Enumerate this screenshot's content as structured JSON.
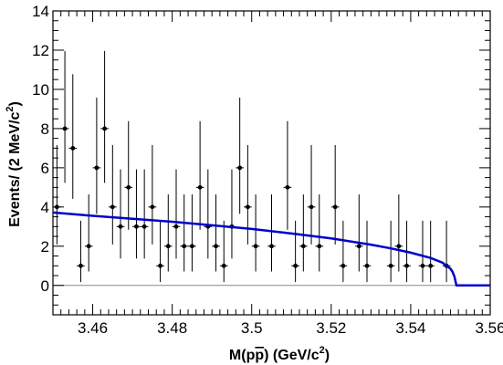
{
  "chart_data": {
    "type": "scatter",
    "title": "",
    "xlabel": "M(pp̄) (GeV/c²)",
    "ylabel": "Events/ (2 MeV/c²)",
    "xlabel_parts": {
      "pre": "M(p",
      "bar": "p",
      "post": ") (GeV/c",
      "sup": "2",
      "end": ")"
    },
    "ylabel_parts": {
      "pre": "Events/ (2 MeV/c",
      "sup": "2",
      "end": ")"
    },
    "xlim": [
      3.45,
      3.56
    ],
    "ylim": [
      -1.5,
      14
    ],
    "xticks": [
      3.46,
      3.48,
      3.5,
      3.52,
      3.54,
      3.56
    ],
    "xtick_labels": [
      "3.46",
      "3.48",
      "3.5",
      "3.52",
      "3.54",
      "3.56"
    ],
    "yticks": [
      0,
      2,
      4,
      6,
      8,
      10,
      12,
      14
    ],
    "ytick_labels": [
      "0",
      "2",
      "4",
      "6",
      "8",
      "10",
      "12",
      "14"
    ],
    "grid": false,
    "bin_half_width": 0.001,
    "series": [
      {
        "kind": "points-with-errors",
        "color": "#000000",
        "x": [
          3.451,
          3.453,
          3.455,
          3.457,
          3.459,
          3.461,
          3.463,
          3.465,
          3.467,
          3.469,
          3.471,
          3.473,
          3.475,
          3.477,
          3.479,
          3.481,
          3.483,
          3.485,
          3.487,
          3.489,
          3.491,
          3.493,
          3.495,
          3.497,
          3.499,
          3.501,
          3.503,
          3.505,
          3.507,
          3.509,
          3.511,
          3.513,
          3.515,
          3.517,
          3.519,
          3.521,
          3.523,
          3.525,
          3.527,
          3.529,
          3.531,
          3.533,
          3.535,
          3.537,
          3.539,
          3.541,
          3.543,
          3.545,
          3.547,
          3.549
        ],
        "y": [
          4,
          8,
          7,
          1,
          2,
          6,
          8,
          4,
          3,
          5,
          3,
          3,
          4,
          1,
          2,
          3,
          2,
          2,
          5,
          3,
          2,
          1,
          3,
          6,
          4,
          2,
          0,
          2,
          0,
          5,
          1,
          2,
          4,
          2,
          0,
          4,
          1,
          0,
          2,
          1,
          0,
          0,
          1,
          2,
          1,
          0,
          1,
          1,
          0,
          1
        ],
        "yerr_low": [
          1.91,
          2.77,
          2.58,
          0.83,
          1.29,
          2.35,
          2.77,
          1.91,
          1.63,
          2.16,
          1.63,
          1.63,
          1.91,
          0.83,
          1.29,
          1.63,
          1.29,
          1.29,
          2.16,
          1.63,
          1.29,
          0.83,
          1.63,
          2.35,
          1.91,
          1.29,
          0,
          1.29,
          0,
          2.16,
          0.83,
          1.29,
          1.91,
          1.29,
          0,
          1.91,
          0.83,
          0,
          1.29,
          0.83,
          0,
          0,
          0.83,
          1.29,
          0.83,
          0,
          0.83,
          0.83,
          0,
          0.83
        ],
        "yerr_high": [
          3.16,
          3.96,
          3.77,
          2.3,
          2.64,
          3.58,
          3.96,
          3.16,
          2.92,
          3.38,
          2.92,
          2.92,
          3.16,
          2.3,
          2.64,
          2.92,
          2.64,
          2.64,
          3.38,
          2.92,
          2.64,
          2.3,
          2.92,
          3.58,
          3.16,
          2.64,
          0,
          2.64,
          0,
          3.38,
          2.3,
          2.64,
          3.16,
          2.64,
          0,
          3.16,
          2.3,
          0,
          2.64,
          2.3,
          0,
          0,
          2.3,
          2.64,
          2.3,
          0,
          2.3,
          2.3,
          0,
          2.3
        ]
      },
      {
        "kind": "line",
        "color": "#0000cc",
        "x": [
          3.45,
          3.46,
          3.47,
          3.48,
          3.49,
          3.5,
          3.51,
          3.52,
          3.53,
          3.535,
          3.54,
          3.545,
          3.548,
          3.55,
          3.5505,
          3.551,
          3.5515,
          3.56
        ],
        "y": [
          3.72,
          3.55,
          3.4,
          3.25,
          3.07,
          2.88,
          2.65,
          2.4,
          2.08,
          1.89,
          1.67,
          1.4,
          1.16,
          0.85,
          0.7,
          0.45,
          0.0,
          0.0
        ]
      }
    ],
    "reference_line": {
      "y": 0,
      "color": "#888888"
    }
  }
}
